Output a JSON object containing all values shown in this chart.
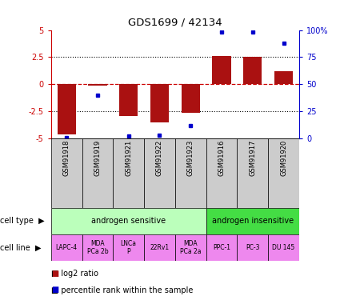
{
  "title": "GDS1699 / 42134",
  "samples": [
    "GSM91918",
    "GSM91919",
    "GSM91921",
    "GSM91922",
    "GSM91923",
    "GSM91916",
    "GSM91917",
    "GSM91920"
  ],
  "log2_ratio": [
    -4.6,
    -0.1,
    -2.9,
    -3.5,
    -2.6,
    2.6,
    2.5,
    1.2
  ],
  "percentile_rank": [
    1,
    40,
    2,
    3,
    12,
    98,
    98,
    88
  ],
  "bar_color": "#aa1111",
  "dot_color": "#0000cc",
  "ylim_left": [
    -5,
    5
  ],
  "ylim_right": [
    0,
    100
  ],
  "yticks_left": [
    -5,
    -2.5,
    0,
    2.5,
    5
  ],
  "yticks_right": [
    0,
    25,
    50,
    75,
    100
  ],
  "ytick_labels_left": [
    "-5",
    "-2.5",
    "0",
    "2.5",
    "5"
  ],
  "ytick_labels_right": [
    "0",
    "25",
    "50",
    "75",
    "100%"
  ],
  "hlines_dotted": [
    -2.5,
    2.5
  ],
  "cell_type_groups": [
    {
      "label": "androgen sensitive",
      "start": 0,
      "end": 5,
      "color": "#bbffbb"
    },
    {
      "label": "androgen insensitive",
      "start": 5,
      "end": 8,
      "color": "#44dd44"
    }
  ],
  "cell_lines": [
    "LAPC-4",
    "MDA\nPCa 2b",
    "LNCa\nP",
    "22Rv1",
    "MDA\nPCa 2a",
    "PPC-1",
    "PC-3",
    "DU 145"
  ],
  "cell_line_color": "#ee88ee",
  "sample_bg_color": "#cccccc",
  "legend_bar_color": "#aa1111",
  "legend_dot_color": "#0000cc",
  "legend_bar_label": "log2 ratio",
  "legend_dot_label": "percentile rank within the sample",
  "zero_line_color": "#cc0000",
  "left_axis_color": "#cc0000",
  "right_axis_color": "#0000cc"
}
